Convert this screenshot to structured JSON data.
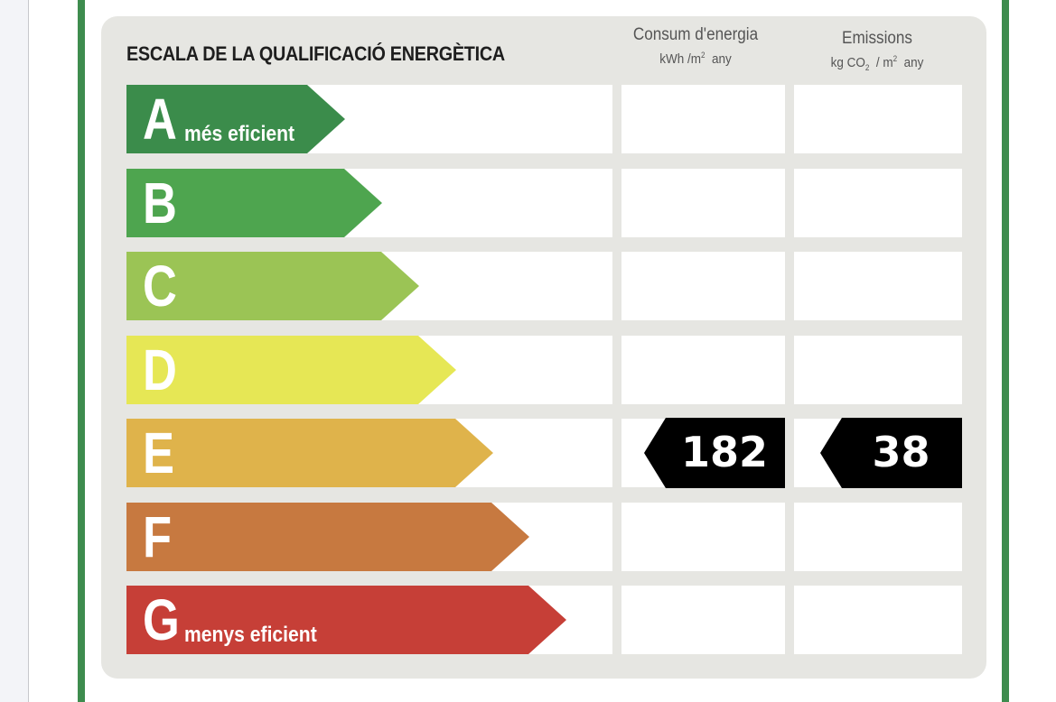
{
  "colors": {
    "border_green": "#3e8c4e",
    "panel": "#e6e6e2",
    "marker": "#000000",
    "classes": [
      "#3b8c4b",
      "#4ea54f",
      "#9bc455",
      "#e6e755",
      "#dfb34b",
      "#c77940",
      "#c63f37"
    ]
  },
  "header": {
    "title": "ESCALA DE LA QUALIFICACIÓ ENERGÈTICA",
    "consumption": {
      "line1": "Consum d'energia",
      "unit_a": "kWh /m",
      "unit_sup": "2",
      "unit_b": "any"
    },
    "emissions": {
      "line1": "Emissions",
      "unit_a": "kg CO",
      "unit_sub": "2",
      "unit_mid": "/ m",
      "unit_sup": "2",
      "unit_b": "any"
    }
  },
  "ratings": [
    {
      "letter": "A",
      "label": "més eficient"
    },
    {
      "letter": "B",
      "label": ""
    },
    {
      "letter": "C",
      "label": ""
    },
    {
      "letter": "D",
      "label": ""
    },
    {
      "letter": "E",
      "label": ""
    },
    {
      "letter": "F",
      "label": ""
    },
    {
      "letter": "G",
      "label": "menys eficient"
    }
  ],
  "result": {
    "class": "E",
    "consumption_value": "182",
    "emissions_value": "38"
  }
}
